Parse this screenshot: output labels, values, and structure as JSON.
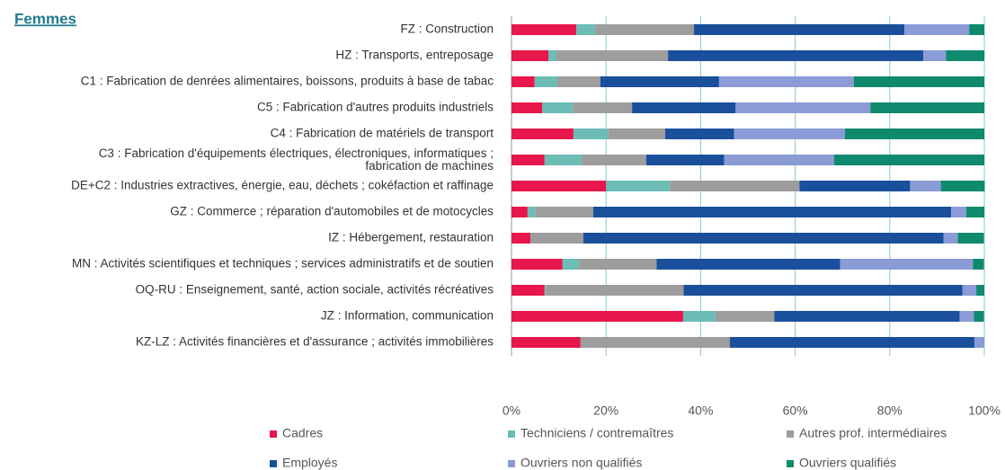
{
  "chart_data": {
    "type": "hbar_stacked",
    "title": "Femmes",
    "title_color": "#1f7a8c",
    "categories": [
      "FZ : Construction",
      "HZ : Transports, entreposage",
      "C1 : Fabrication de denrées alimentaires, boissons, produits à base de tabac",
      "C5 : Fabrication d'autres produits industriels",
      "C4 : Fabrication de matériels de transport",
      "C3 : Fabrication d'équipements électriques, électroniques, informatiques ;\nfabrication de machines",
      "DE+C2 : Industries extractives, énergie, eau, déchets ; cokéfaction et raffinage",
      "GZ : Commerce ; réparation d'automobiles et de motocycles",
      "IZ : Hébergement, restauration",
      "MN : Activités scientifiques et techniques ; services administratifs et de soutien",
      "OQ-RU : Enseignement, santé, action sociale, activités récréatives",
      "JZ : Information, communication",
      "KZ-LZ : Activités financières et d'assurance ; activités immobilières"
    ],
    "series": [
      {
        "name": "Cadres",
        "color": "#e8174b",
        "values": [
          13.7,
          7.8,
          4.9,
          6.5,
          13.1,
          7.0,
          20.0,
          3.4,
          4.0,
          10.8,
          7.0,
          36.3,
          14.6
        ]
      },
      {
        "name": "Techniciens / contremaîtres",
        "color": "#6bbdb5",
        "values": [
          4.0,
          1.7,
          4.8,
          6.5,
          7.4,
          7.8,
          13.5,
          1.7,
          0,
          3.4,
          0.3,
          6.8,
          0
        ]
      },
      {
        "name": "Autres prof. intermédiaires",
        "color": "#9d9d9d",
        "values": [
          20.9,
          23.6,
          9.1,
          12.5,
          12.0,
          13.7,
          27.4,
          12.2,
          11.2,
          16.5,
          29.1,
          12.5,
          31.6
        ]
      },
      {
        "name": "Employés",
        "color": "#1a4f9c",
        "values": [
          44.5,
          54.0,
          25.1,
          21.9,
          14.6,
          16.5,
          23.4,
          75.7,
          76.2,
          38.8,
          59.0,
          39.2,
          51.7
        ]
      },
      {
        "name": "Ouvriers non qualifiés",
        "color": "#8b9bd6",
        "values": [
          13.7,
          4.8,
          28.5,
          28.5,
          23.4,
          23.2,
          6.5,
          3.2,
          3.0,
          28.1,
          2.9,
          3.0,
          2.1
        ]
      },
      {
        "name": "Ouvriers qualifiés",
        "color": "#0f8a6e",
        "values": [
          3.2,
          8.1,
          27.6,
          24.1,
          29.5,
          31.8,
          9.3,
          3.8,
          5.5,
          2.3,
          1.7,
          2.1,
          0
        ]
      }
    ],
    "xlim": [
      0,
      100
    ],
    "xticks": [
      {
        "value": 0,
        "label": "0%"
      },
      {
        "value": 20,
        "label": "20%"
      },
      {
        "value": 40,
        "label": "40%"
      },
      {
        "value": 60,
        "label": "60%"
      },
      {
        "value": 80,
        "label": "80%"
      },
      {
        "value": 100,
        "label": "100%"
      }
    ],
    "grid": true,
    "legend": "bottom"
  }
}
